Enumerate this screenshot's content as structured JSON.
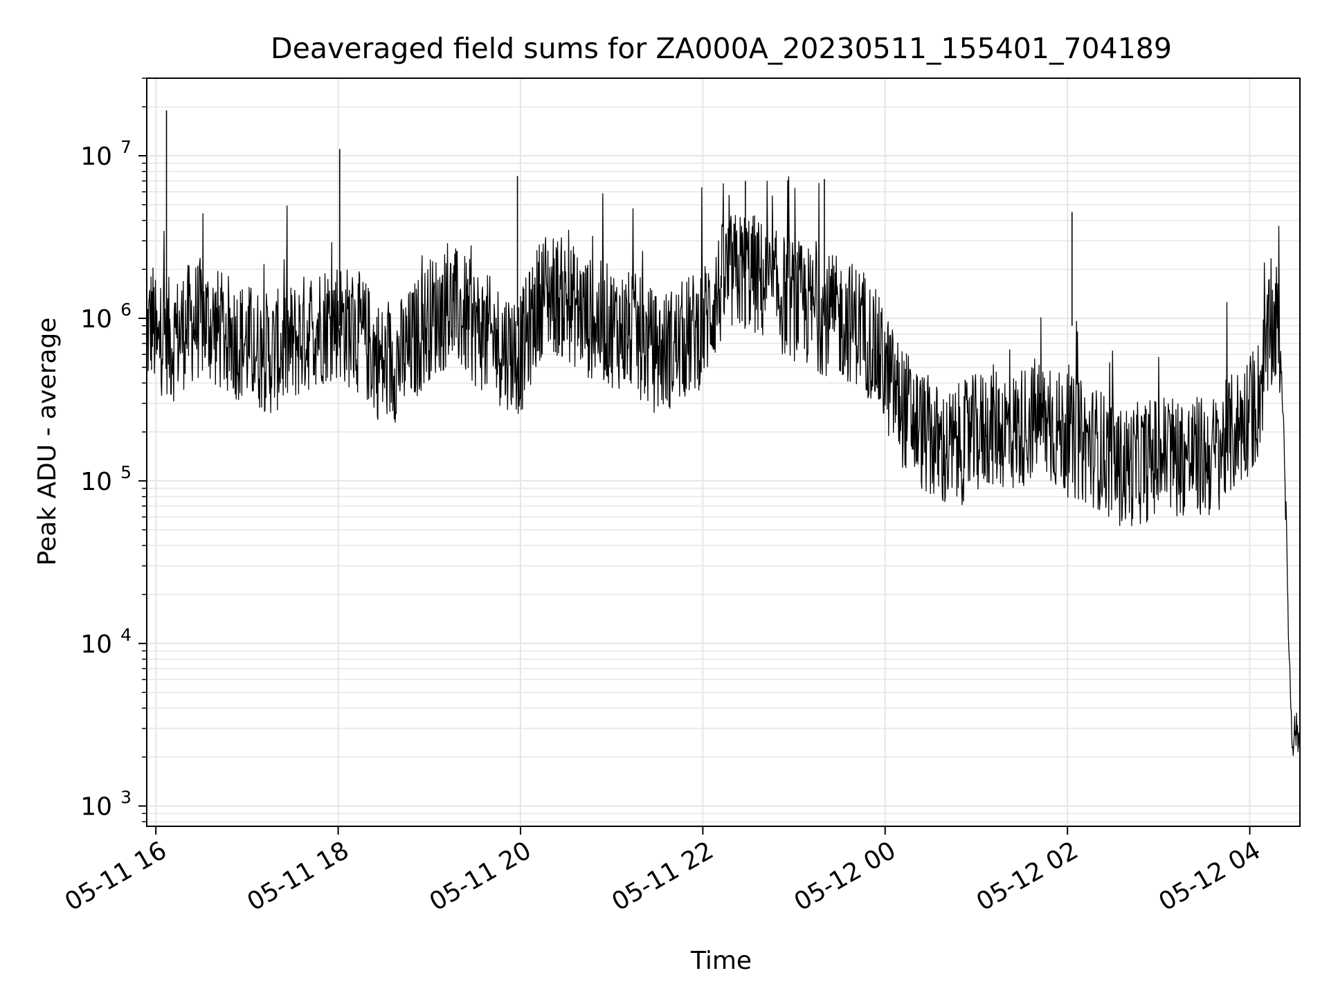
{
  "chart_data": {
    "type": "line",
    "title": "Deaveraged field sums for ZA000A_20230511_155401_704189",
    "xlabel": "Time",
    "ylabel": "Peak ADU - average",
    "yscale": "log",
    "xlim": [
      "2023-05-11 15:54",
      "2023-05-12 04:33"
    ],
    "ylim": [
      750,
      30000000
    ],
    "x_ticks": [
      {
        "time": "2023-05-11 16:00",
        "label": "05-11 16"
      },
      {
        "time": "2023-05-11 18:00",
        "label": "05-11 18"
      },
      {
        "time": "2023-05-11 20:00",
        "label": "05-11 20"
      },
      {
        "time": "2023-05-11 22:00",
        "label": "05-11 22"
      },
      {
        "time": "2023-05-12 00:00",
        "label": "05-12 00"
      },
      {
        "time": "2023-05-12 02:00",
        "label": "05-12 02"
      },
      {
        "time": "2023-05-12 04:00",
        "label": "05-12 04"
      }
    ],
    "y_ticks": [
      {
        "value": 1000,
        "base": "10",
        "exp": "3"
      },
      {
        "value": 10000,
        "base": "10",
        "exp": "4"
      },
      {
        "value": 100000,
        "base": "10",
        "exp": "5"
      },
      {
        "value": 1000000,
        "base": "10",
        "exp": "6"
      },
      {
        "value": 10000000,
        "base": "10",
        "exp": "7"
      }
    ],
    "grid": true,
    "line_color": "#000000",
    "grid_color": "#e6e6e6",
    "series": [
      {
        "x": [
          "2023-05-11 15:54",
          "2023-05-11 15:58",
          "2023-05-11 16:01",
          "2023-05-11 16:05",
          "2023-05-11 16:10",
          "2023-05-11 16:20",
          "2023-05-11 16:30",
          "2023-05-11 16:45",
          "2023-05-11 17:00",
          "2023-05-11 17:15",
          "2023-05-11 17:30",
          "2023-05-11 17:45",
          "2023-05-11 18:00",
          "2023-05-11 18:05",
          "2023-05-11 18:15",
          "2023-05-11 18:30",
          "2023-05-11 18:45",
          "2023-05-11 19:00",
          "2023-05-11 19:15",
          "2023-05-11 19:30",
          "2023-05-11 19:45",
          "2023-05-11 20:00",
          "2023-05-11 20:15",
          "2023-05-11 20:30",
          "2023-05-11 20:45",
          "2023-05-11 21:00",
          "2023-05-11 21:15",
          "2023-05-11 21:30",
          "2023-05-11 21:45",
          "2023-05-11 22:00",
          "2023-05-11 22:15",
          "2023-05-11 22:30",
          "2023-05-11 22:45",
          "2023-05-11 23:00",
          "2023-05-11 23:15",
          "2023-05-11 23:30",
          "2023-05-11 23:45",
          "2023-05-11 23:55",
          "2023-05-12 00:10",
          "2023-05-12 00:25",
          "2023-05-12 00:40",
          "2023-05-12 00:55",
          "2023-05-12 01:10",
          "2023-05-12 01:25",
          "2023-05-12 01:40",
          "2023-05-12 01:55",
          "2023-05-12 02:05",
          "2023-05-12 02:20",
          "2023-05-12 02:35",
          "2023-05-12 02:50",
          "2023-05-12 03:05",
          "2023-05-12 03:20",
          "2023-05-12 03:35",
          "2023-05-12 03:50",
          "2023-05-12 04:05",
          "2023-05-12 04:12",
          "2023-05-12 04:18",
          "2023-05-12 04:22",
          "2023-05-12 04:26",
          "2023-05-12 04:28",
          "2023-05-12 04:30",
          "2023-05-12 04:33"
        ],
        "y": [
          800000,
          1000000,
          600000,
          900000,
          700000,
          900000,
          1000000,
          800000,
          700000,
          600000,
          700000,
          900000,
          1000000,
          900000,
          800000,
          500000,
          600000,
          1000000,
          1200000,
          900000,
          700000,
          600000,
          1500000,
          1300000,
          1000000,
          900000,
          800000,
          600000,
          700000,
          900000,
          1800000,
          2000000,
          1500000,
          1300000,
          1100000,
          1000000,
          900000,
          600000,
          300000,
          200000,
          150000,
          180000,
          220000,
          200000,
          250000,
          200000,
          180000,
          160000,
          120000,
          130000,
          150000,
          140000,
          140000,
          200000,
          300000,
          700000,
          950000,
          300000,
          8000,
          2500,
          3000,
          2500
        ]
      }
    ],
    "annotations": [
      {
        "time": "2023-05-11 16:07",
        "value": 19000000
      },
      {
        "time": "2023-05-11 18:01",
        "value": 11000000
      },
      {
        "time": "2023-05-11 19:58",
        "value": 7500000
      },
      {
        "time": "2023-05-11 22:28",
        "value": 7000000
      },
      {
        "time": "2023-05-11 23:20",
        "value": 7200000
      },
      {
        "time": "2023-05-12 02:03",
        "value": 4500000
      }
    ]
  }
}
